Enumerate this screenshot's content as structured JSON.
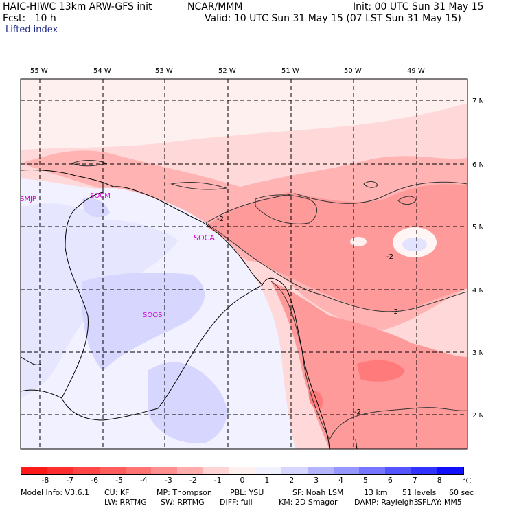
{
  "header": {
    "model": "HAIC-HIWC 13km ARW-GFS init",
    "org": "NCAR/MMM",
    "init": "Init: 00 UTC Sun 31 May 15",
    "fcst": "Fcst:   10 h",
    "valid": "Valid: 10 UTC Sun 31 May 15 (07 LST Sun 31 May 15)",
    "field": "Lifted index"
  },
  "map": {
    "lon_labels": [
      "55 W",
      "54 W",
      "53 W",
      "52 W",
      "51 W",
      "50 W",
      "49 W"
    ],
    "lat_labels": [
      "7 N",
      "6 N",
      "5 N",
      "4 N",
      "3 N",
      "2 N"
    ],
    "stations": [
      "SMJP",
      "SOCM",
      "SOCA",
      "SOOS"
    ],
    "contour_labels": [
      "-2",
      "-2",
      "-2",
      "-2"
    ]
  },
  "colorbar": {
    "ticks": [
      "-8",
      "-7",
      "-6",
      "-5",
      "-4",
      "-3",
      "-2",
      "-1",
      "0",
      "1",
      "2",
      "3",
      "4",
      "5",
      "6",
      "7",
      "8"
    ],
    "unit": "°C",
    "colors": [
      "#ff1a1a",
      "#ff2e2e",
      "#ff4545",
      "#ff5c5c",
      "#ff7373",
      "#ff8f8f",
      "#ffadad",
      "#ffd4d4",
      "#fff0f0",
      "#f0f0ff",
      "#d6d6ff",
      "#b5b5ff",
      "#9696ff",
      "#7575ff",
      "#5555ff",
      "#3232ff",
      "#1010ff"
    ]
  },
  "footer": {
    "line1": [
      "Model Info: V3.6.1",
      "CU: KF",
      "MP: Thompson",
      "PBL: YSU",
      "SF: Noah LSM",
      "13 km",
      "51 levels",
      "60 sec"
    ],
    "line2": [
      "LW: RRTMG",
      "SW: RRTMG",
      "DIFF: full",
      "KM: 2D Smagor",
      "DAMP: Rayleigh3",
      "SFLAY: MM5"
    ]
  }
}
